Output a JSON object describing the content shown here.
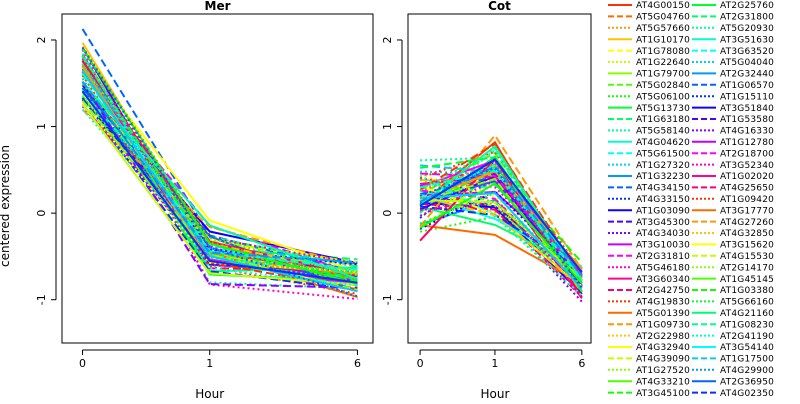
{
  "chart_data": {
    "type": "line",
    "ylabel": "centered expression",
    "xlabel": "Hour",
    "x_ticks": [
      "0",
      "1",
      "6"
    ],
    "y_ticks": [
      "2",
      "1",
      "0",
      "-1"
    ],
    "ylim": [
      -1.5,
      2.3
    ],
    "panels": [
      {
        "title": "Mer"
      },
      {
        "title": "Cot"
      }
    ],
    "legend_col1": [
      "AT4G00150",
      "AT5G04760",
      "AT5G57660",
      "AT1G10170",
      "AT1G78080",
      "AT1G22640",
      "AT1G79700",
      "AT5G02840",
      "AT5G06100",
      "AT5G13730",
      "AT1G63180",
      "AT5G58140",
      "AT4G04620",
      "AT5G61500",
      "AT1G27320",
      "AT1G32230",
      "AT4G34150",
      "AT4G33150",
      "AT1G03090",
      "AT3G45300",
      "AT4G34030",
      "AT3G10030",
      "AT2G31810",
      "AT5G46180",
      "AT3G60340",
      "AT2G42750",
      "AT4G19830",
      "AT5G01390",
      "AT1G09730",
      "AT2G22980",
      "AT4G32940",
      "AT4G39090",
      "AT1G27520",
      "AT4G33210",
      "AT3G45100"
    ],
    "legend_col2": [
      "AT2G25760",
      "AT2G31800",
      "AT5G20930",
      "AT3G51630",
      "AT3G63520",
      "AT5G04040",
      "AT2G32440",
      "AT1G06570",
      "AT1G15110",
      "AT3G51840",
      "AT1G53580",
      "AT4G16330",
      "AT1G12780",
      "AT2G18700",
      "AT3G52340",
      "AT1G02020",
      "AT4G25650",
      "AT1G09420",
      "AT3G17770",
      "AT4G27260",
      "AT4G32850",
      "AT3G15620",
      "AT4G15530",
      "AT2G14170",
      "AT1G45145",
      "AT1G03380",
      "AT5G66160",
      "AT4G21160",
      "AT1G08230",
      "AT2G41190",
      "AT3G54140",
      "AT1G17500",
      "AT4G29900",
      "AT2G36950",
      "AT4G02350"
    ],
    "series_colors": [
      "#ff3300",
      "#ff6a00",
      "#ff9900",
      "#ffc400",
      "#ffff00",
      "#c4ff00",
      "#88ff00",
      "#4dff00",
      "#11ff00",
      "#00ff33",
      "#00ff66",
      "#00ff99",
      "#00ffcc",
      "#00ffff",
      "#00ccff",
      "#0099ff",
      "#0066ff",
      "#0033ff",
      "#1100ff",
      "#4d00ff",
      "#8800ff",
      "#c400ff",
      "#ff00ff",
      "#ff00cc",
      "#ff0099",
      "#ff0066"
    ],
    "legend_line_styles": [
      "solid",
      "dashed",
      "dotted"
    ]
  }
}
